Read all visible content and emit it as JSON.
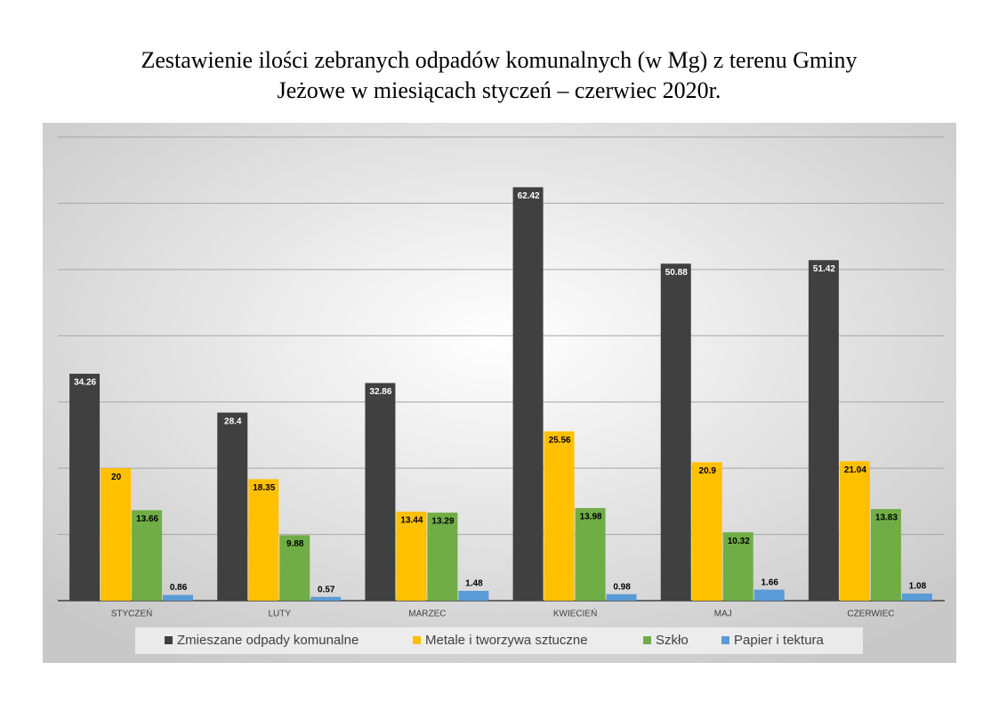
{
  "chart_data": {
    "type": "bar",
    "title": [
      "Zestawienie ilości zebranych odpadów komunalnych (w Mg) z terenu Gminy",
      "Jeżowe w miesiącach styczeń – czerwiec 2020r."
    ],
    "categories": [
      "STYCZEŃ",
      "LUTY",
      "MARZEC",
      "KWIECIEŃ",
      "MAJ",
      "CZERWIEC"
    ],
    "series": [
      {
        "name": "Zmieszane odpady komunalne",
        "color": "#404040",
        "values": [
          34.26,
          28.4,
          32.86,
          62.42,
          50.88,
          51.42
        ]
      },
      {
        "name": "Metale i tworzywa sztuczne",
        "color": "#ffc000",
        "values": [
          20,
          18.35,
          13.44,
          25.56,
          20.9,
          21.04
        ]
      },
      {
        "name": "Szkło",
        "color": "#70ad47",
        "values": [
          13.66,
          9.88,
          13.29,
          13.98,
          10.32,
          13.83
        ]
      },
      {
        "name": "Papier  i tektura",
        "color": "#5b9bd5",
        "values": [
          0.86,
          0.57,
          1.48,
          0.98,
          1.66,
          1.08
        ]
      }
    ],
    "ylim": [
      0,
      70
    ],
    "gridlines": [
      0,
      10,
      20,
      30,
      40,
      50,
      60,
      70
    ],
    "grid": true,
    "legend": "bottom"
  }
}
